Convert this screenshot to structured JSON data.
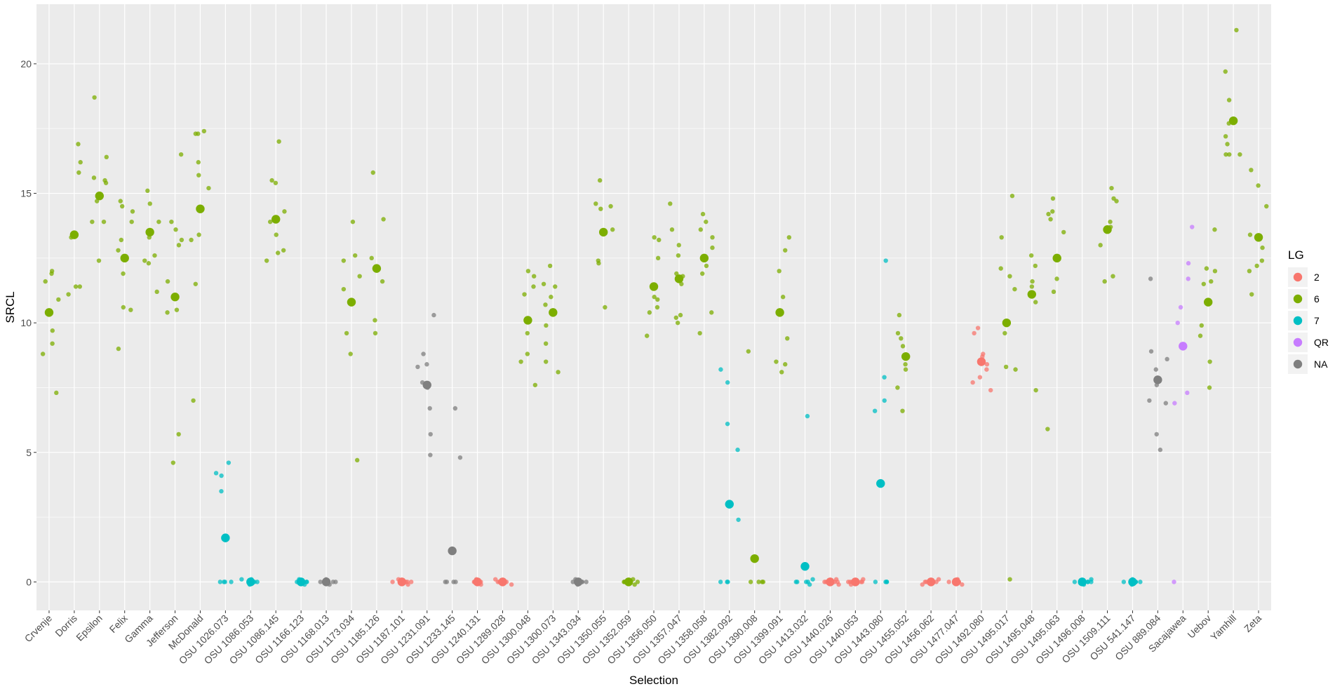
{
  "chart_data": {
    "type": "scatter",
    "xlabel": "Selection",
    "ylabel": "SRCL",
    "ylim": [
      -1.1,
      22.3
    ],
    "yticks": [
      0,
      5,
      10,
      15,
      20
    ],
    "grid": true,
    "legend_position": "right",
    "legend": {
      "title": "LG",
      "entries": [
        {
          "key": "2",
          "label": "2",
          "color": "#F8766D"
        },
        {
          "key": "6",
          "label": "6",
          "color": "#7CAE00"
        },
        {
          "key": "7",
          "label": "7",
          "color": "#00BFC4"
        },
        {
          "key": "QR",
          "label": "QR",
          "color": "#C77CFF"
        },
        {
          "key": "NA",
          "label": "NA",
          "color": "#7F7F7F"
        }
      ]
    },
    "categories": [
      "Crvenje",
      "Dorris",
      "Epsilon",
      "Felix",
      "Gamma",
      "Jefferson",
      "McDonald",
      "OSU 1026.073",
      "OSU 1086.053",
      "OSU 1086.145",
      "OSU 1166.123",
      "OSU 1168.013",
      "OSU 1173.034",
      "OSU 1185.126",
      "OSU 1187.101",
      "OSU 1231.091",
      "OSU 1233.145",
      "OSU 1240.131",
      "OSU 1289.028",
      "OSU 1300.048",
      "OSU 1300.073",
      "OSU 1343.034",
      "OSU 1350.055",
      "OSU 1352.059",
      "OSU 1356.050",
      "OSU 1357.047",
      "OSU 1358.058",
      "OSU 1382.092",
      "OSU 1390.008",
      "OSU 1399.091",
      "OSU 1413.032",
      "OSU 1440.026",
      "OSU 1440.053",
      "OSU 1443.080",
      "OSU 1455.052",
      "OSU 1456.062",
      "OSU 1477.047",
      "OSU 1492.080",
      "OSU 1495.017",
      "OSU 1495.048",
      "OSU 1495.063",
      "OSU 1496.008",
      "OSU 1509.111",
      "OSU 541.147",
      "OSU 889.084",
      "Sacajawea",
      "Uebov",
      "Yamhill",
      "Zeta"
    ],
    "groups": [
      {
        "category": "Crvenje",
        "lg": "6",
        "mean": 10.4,
        "values": [
          12.0,
          11.6,
          11.9,
          10.9,
          9.7,
          9.2,
          8.8,
          7.3
        ]
      },
      {
        "category": "Dorris",
        "lg": "6",
        "mean": 13.4,
        "values": [
          16.9,
          16.2,
          15.8,
          13.3,
          11.4,
          11.1,
          11.4
        ]
      },
      {
        "category": "Epsilon",
        "lg": "6",
        "mean": 14.9,
        "values": [
          18.7,
          15.6,
          15.5,
          16.4,
          15.4,
          13.9,
          12.4,
          13.9,
          14.7
        ]
      },
      {
        "category": "Felix",
        "lg": "6",
        "mean": 12.5,
        "values": [
          14.7,
          14.5,
          14.3,
          13.9,
          11.9,
          10.6,
          10.5,
          9.0,
          12.8,
          13.2
        ]
      },
      {
        "category": "Gamma",
        "lg": "6",
        "mean": 13.5,
        "values": [
          15.1,
          14.6,
          13.9,
          13.3,
          12.6,
          12.4,
          12.3,
          11.2
        ]
      },
      {
        "category": "Jefferson",
        "lg": "6",
        "mean": 11.0,
        "values": [
          16.5,
          13.9,
          13.6,
          13.2,
          13.0,
          11.6,
          10.5,
          10.4,
          5.7,
          4.6
        ]
      },
      {
        "category": "McDonald",
        "lg": "6",
        "mean": 14.4,
        "values": [
          17.4,
          17.3,
          17.3,
          16.2,
          15.7,
          15.2,
          13.4,
          13.2,
          11.5,
          7.0
        ]
      },
      {
        "category": "OSU 1026.073",
        "lg": "7",
        "mean": 1.7,
        "values": [
          4.6,
          4.2,
          4.1,
          3.5,
          0.0,
          0.0,
          0.0,
          0.0
        ]
      },
      {
        "category": "OSU 1086.053",
        "lg": "7",
        "mean": 0.0,
        "values": [
          0.1,
          0.0,
          0.0,
          0.0,
          0.1,
          0.0,
          -0.1,
          0.0
        ]
      },
      {
        "category": "OSU 1086.145",
        "lg": "6",
        "mean": 14.0,
        "values": [
          17.0,
          15.5,
          15.4,
          14.3,
          13.9,
          13.4,
          12.8,
          12.7,
          12.4
        ]
      },
      {
        "category": "OSU 1166.123",
        "lg": "7",
        "mean": 0.0,
        "values": [
          0.0,
          0.0,
          0.1,
          0.0,
          -0.1,
          0.0,
          0.0
        ]
      },
      {
        "category": "OSU 1168.013",
        "lg": "NA",
        "mean": 0.0,
        "values": [
          0.0,
          0.1,
          0.0,
          0.0,
          -0.1,
          0.0
        ]
      },
      {
        "category": "OSU 1173.034",
        "lg": "6",
        "mean": 10.8,
        "values": [
          13.9,
          12.6,
          12.4,
          11.8,
          11.3,
          9.6,
          8.8,
          4.7
        ]
      },
      {
        "category": "OSU 1185.126",
        "lg": "6",
        "mean": 12.1,
        "values": [
          15.8,
          14.0,
          12.5,
          11.6,
          10.1,
          9.6
        ]
      },
      {
        "category": "OSU 1187.101",
        "lg": "2",
        "mean": 0.0,
        "values": [
          0.0,
          0.1,
          0.0,
          -0.1,
          0.0,
          0.0,
          0.0
        ]
      },
      {
        "category": "OSU 1231.091",
        "lg": "NA",
        "mean": 7.6,
        "values": [
          10.3,
          8.8,
          8.3,
          7.7,
          7.5,
          6.7,
          5.7,
          4.9,
          8.4
        ]
      },
      {
        "category": "OSU 1233.145",
        "lg": "NA",
        "mean": 1.2,
        "values": [
          6.7,
          4.8,
          0.0,
          0.0,
          0.0,
          0.0
        ]
      },
      {
        "category": "OSU 1240.131",
        "lg": "2",
        "mean": 0.0,
        "values": [
          0.0,
          0.1,
          0.0,
          -0.1,
          0.0,
          0.0
        ]
      },
      {
        "category": "OSU 1289.028",
        "lg": "2",
        "mean": 0.0,
        "values": [
          0.0,
          0.0,
          0.1,
          0.0,
          -0.1,
          0.0
        ]
      },
      {
        "category": "OSU 1300.048",
        "lg": "6",
        "mean": 10.1,
        "values": [
          12.0,
          11.8,
          11.4,
          11.1,
          9.6,
          8.8,
          8.5,
          7.6
        ]
      },
      {
        "category": "OSU 1300.073",
        "lg": "6",
        "mean": 10.4,
        "values": [
          12.2,
          11.5,
          11.4,
          11.0,
          10.7,
          9.9,
          9.2,
          8.5,
          8.1
        ]
      },
      {
        "category": "OSU 1343.034",
        "lg": "NA",
        "mean": 0.0,
        "values": [
          0.0,
          0.0,
          0.1,
          0.0,
          -0.1,
          0.0
        ]
      },
      {
        "category": "OSU 1350.055",
        "lg": "6",
        "mean": 13.5,
        "values": [
          15.5,
          14.6,
          14.5,
          14.4,
          13.6,
          12.4,
          12.3,
          10.6
        ]
      },
      {
        "category": "OSU 1352.059",
        "lg": "6",
        "mean": 0.0,
        "values": [
          0.0,
          0.0,
          0.1,
          0.0,
          -0.1,
          0.0
        ]
      },
      {
        "category": "OSU 1356.050",
        "lg": "6",
        "mean": 11.4,
        "values": [
          13.3,
          12.5,
          11.0,
          10.9,
          10.6,
          10.4,
          9.5,
          13.2
        ]
      },
      {
        "category": "OSU 1357.047",
        "lg": "6",
        "mean": 11.7,
        "values": [
          14.6,
          13.6,
          13.0,
          12.6,
          11.9,
          11.8,
          11.5,
          10.3,
          10.2,
          10.0
        ]
      },
      {
        "category": "OSU 1358.058",
        "lg": "6",
        "mean": 12.5,
        "values": [
          14.2,
          13.9,
          13.6,
          13.3,
          12.9,
          12.2,
          11.9,
          10.4,
          9.6
        ]
      },
      {
        "category": "OSU 1382.092",
        "lg": "7",
        "mean": 3.0,
        "values": [
          8.2,
          7.7,
          6.1,
          5.1,
          2.4,
          0.0,
          0.0,
          0.0
        ]
      },
      {
        "category": "OSU 1390.008",
        "lg": "6",
        "mean": 0.9,
        "values": [
          8.9,
          0.0,
          0.0,
          0.0,
          0.0
        ]
      },
      {
        "category": "OSU 1399.091",
        "lg": "6",
        "mean": 10.4,
        "values": [
          13.3,
          12.8,
          12.0,
          11.0,
          9.4,
          8.5,
          8.4,
          8.1
        ]
      },
      {
        "category": "OSU 1413.032",
        "lg": "7",
        "mean": 0.6,
        "values": [
          6.4,
          0.0,
          0.0,
          0.1,
          -0.1,
          0.0,
          0.0
        ]
      },
      {
        "category": "OSU 1440.026",
        "lg": "2",
        "mean": 0.0,
        "values": [
          0.0,
          0.1,
          0.0,
          -0.1,
          0.0,
          0.0,
          0.0
        ]
      },
      {
        "category": "OSU 1440.053",
        "lg": "2",
        "mean": 0.0,
        "values": [
          0.0,
          0.0,
          0.1,
          0.0,
          -0.1,
          0.0,
          0.0
        ]
      },
      {
        "category": "OSU 1443.080",
        "lg": "7",
        "mean": 3.8,
        "values": [
          12.4,
          7.9,
          7.0,
          6.6,
          0.0,
          0.0,
          0.0,
          0.0
        ]
      },
      {
        "category": "OSU 1455.052",
        "lg": "6",
        "mean": 8.7,
        "values": [
          10.3,
          9.6,
          9.4,
          9.1,
          8.4,
          8.2,
          7.5,
          6.6
        ]
      },
      {
        "category": "OSU 1456.062",
        "lg": "2",
        "mean": 0.0,
        "values": [
          0.0,
          0.1,
          0.0,
          -0.1,
          0.0,
          0.0,
          0.0
        ]
      },
      {
        "category": "OSU 1477.047",
        "lg": "2",
        "mean": 0.0,
        "values": [
          0.0,
          0.1,
          0.0,
          -0.1,
          0.0,
          0.0,
          0.0
        ]
      },
      {
        "category": "OSU 1492.080",
        "lg": "2",
        "mean": 8.5,
        "values": [
          9.8,
          9.6,
          8.8,
          8.7,
          8.2,
          7.9,
          7.7,
          7.4,
          8.4
        ]
      },
      {
        "category": "OSU 1495.017",
        "lg": "6",
        "mean": 10.0,
        "values": [
          14.9,
          13.3,
          12.1,
          11.8,
          11.3,
          9.6,
          8.3,
          8.2,
          0.1
        ]
      },
      {
        "category": "OSU 1495.048",
        "lg": "6",
        "mean": 11.1,
        "values": [
          12.6,
          12.2,
          11.6,
          11.4,
          10.8,
          7.4
        ]
      },
      {
        "category": "OSU 1495.063",
        "lg": "6",
        "mean": 12.5,
        "values": [
          14.8,
          14.3,
          14.2,
          14.0,
          13.5,
          11.7,
          11.2,
          5.9
        ]
      },
      {
        "category": "OSU 1496.008",
        "lg": "7",
        "mean": 0.0,
        "values": [
          0.0,
          0.1,
          0.0,
          -0.1,
          0.0,
          0.0
        ]
      },
      {
        "category": "OSU 1509.111",
        "lg": "6",
        "mean": 13.6,
        "values": [
          15.2,
          14.8,
          14.7,
          13.9,
          13.7,
          13.0,
          11.8,
          11.6
        ]
      },
      {
        "category": "OSU 541.147",
        "lg": "7",
        "mean": 0.0,
        "values": [
          0.0,
          0.1,
          0.0,
          -0.1,
          0.0,
          0.0
        ]
      },
      {
        "category": "OSU 889.084",
        "lg": "NA",
        "mean": 7.8,
        "values": [
          11.7,
          8.9,
          8.6,
          8.2,
          7.6,
          7.0,
          6.9,
          5.7,
          5.1
        ]
      },
      {
        "category": "Sacajawea",
        "lg": "QR",
        "mean": 9.1,
        "values": [
          13.7,
          12.3,
          11.7,
          10.6,
          10.0,
          7.3,
          6.9,
          0.0
        ]
      },
      {
        "category": "Uebov",
        "lg": "6",
        "mean": 10.8,
        "values": [
          13.6,
          12.1,
          12.0,
          11.6,
          11.5,
          9.9,
          9.5,
          8.5,
          7.5
        ]
      },
      {
        "category": "Yamhill",
        "lg": "6",
        "mean": 17.8,
        "values": [
          21.3,
          19.7,
          18.6,
          17.7,
          17.2,
          16.9,
          16.5,
          16.5,
          16.5
        ]
      },
      {
        "category": "Zeta",
        "lg": "6",
        "mean": 13.3,
        "values": [
          15.9,
          15.3,
          14.5,
          13.4,
          12.9,
          12.4,
          12.2,
          12.0,
          11.1
        ]
      }
    ]
  }
}
